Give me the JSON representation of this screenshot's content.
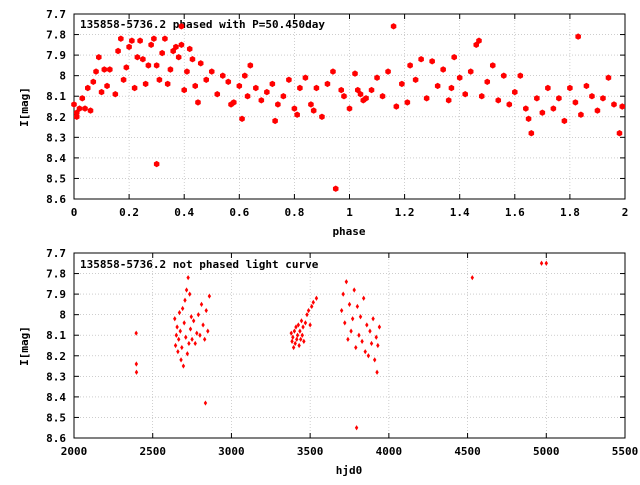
{
  "chart_data": [
    {
      "type": "scatter",
      "title": "135858-5736.2 phased with P=50.450day",
      "xlabel": "phase",
      "ylabel": "I[mag]",
      "xlim": [
        0,
        2
      ],
      "ylim": [
        8.6,
        7.7
      ],
      "y_inverted": true,
      "grid": true,
      "marker_color": "#ff0000",
      "x_ticks": [
        "0",
        "0.2",
        "0.4",
        "0.6",
        "0.8",
        "1",
        "1.2",
        "1.4",
        "1.6",
        "1.8",
        "2"
      ],
      "y_ticks": [
        "7.7",
        "7.8",
        "7.9",
        "8",
        "8.1",
        "8.2",
        "8.3",
        "8.4",
        "8.5",
        "8.6"
      ],
      "points": [
        [
          0.0,
          8.14
        ],
        [
          0.01,
          8.18
        ],
        [
          0.01,
          8.2
        ],
        [
          0.02,
          8.16
        ],
        [
          0.03,
          8.11
        ],
        [
          0.04,
          8.16
        ],
        [
          0.05,
          8.06
        ],
        [
          0.06,
          8.17
        ],
        [
          0.07,
          8.03
        ],
        [
          0.08,
          7.98
        ],
        [
          0.09,
          7.91
        ],
        [
          0.1,
          8.08
        ],
        [
          0.11,
          7.97
        ],
        [
          0.12,
          8.05
        ],
        [
          0.13,
          7.97
        ],
        [
          0.15,
          8.09
        ],
        [
          0.16,
          7.88
        ],
        [
          0.17,
          7.82
        ],
        [
          0.18,
          8.02
        ],
        [
          0.19,
          7.96
        ],
        [
          0.2,
          7.86
        ],
        [
          0.21,
          7.83
        ],
        [
          0.22,
          8.06
        ],
        [
          0.23,
          7.91
        ],
        [
          0.24,
          7.83
        ],
        [
          0.25,
          7.92
        ],
        [
          0.26,
          8.04
        ],
        [
          0.27,
          7.95
        ],
        [
          0.28,
          7.85
        ],
        [
          0.29,
          7.82
        ],
        [
          0.3,
          7.95
        ],
        [
          0.31,
          8.02
        ],
        [
          0.32,
          7.89
        ],
        [
          0.33,
          7.82
        ],
        [
          0.34,
          8.04
        ],
        [
          0.35,
          7.97
        ],
        [
          0.36,
          7.88
        ],
        [
          0.37,
          7.86
        ],
        [
          0.38,
          7.91
        ],
        [
          0.39,
          7.85
        ],
        [
          0.4,
          8.07
        ],
        [
          0.41,
          7.98
        ],
        [
          0.42,
          7.87
        ],
        [
          0.43,
          7.92
        ],
        [
          0.44,
          8.05
        ],
        [
          0.45,
          8.13
        ],
        [
          0.46,
          7.94
        ],
        [
          0.48,
          8.02
        ],
        [
          0.5,
          7.98
        ],
        [
          0.52,
          8.09
        ],
        [
          0.54,
          8.0
        ],
        [
          0.56,
          8.03
        ],
        [
          0.58,
          8.13
        ],
        [
          0.6,
          8.05
        ],
        [
          0.61,
          8.21
        ],
        [
          0.62,
          8.0
        ],
        [
          0.63,
          8.1
        ],
        [
          0.64,
          7.95
        ],
        [
          0.66,
          8.06
        ],
        [
          0.68,
          8.12
        ],
        [
          0.7,
          8.08
        ],
        [
          0.72,
          8.04
        ],
        [
          0.73,
          8.22
        ],
        [
          0.74,
          8.14
        ],
        [
          0.76,
          8.1
        ],
        [
          0.78,
          8.02
        ],
        [
          0.8,
          8.16
        ],
        [
          0.81,
          8.19
        ],
        [
          0.82,
          8.06
        ],
        [
          0.84,
          8.01
        ],
        [
          0.86,
          8.14
        ],
        [
          0.87,
          8.17
        ],
        [
          0.88,
          8.06
        ],
        [
          0.9,
          8.2
        ],
        [
          0.92,
          8.04
        ],
        [
          0.94,
          7.98
        ],
        [
          0.95,
          8.55
        ],
        [
          0.97,
          8.07
        ],
        [
          0.98,
          8.1
        ],
        [
          1.0,
          8.16
        ],
        [
          1.02,
          7.99
        ],
        [
          1.03,
          8.07
        ],
        [
          1.04,
          8.09
        ],
        [
          1.06,
          8.11
        ],
        [
          1.08,
          8.07
        ],
        [
          1.1,
          8.01
        ],
        [
          1.12,
          8.1
        ],
        [
          1.14,
          7.98
        ],
        [
          1.16,
          7.76
        ],
        [
          1.17,
          8.15
        ],
        [
          1.19,
          8.04
        ],
        [
          1.21,
          8.13
        ],
        [
          1.22,
          7.95
        ],
        [
          1.24,
          8.02
        ],
        [
          1.26,
          7.92
        ],
        [
          1.28,
          8.11
        ],
        [
          1.3,
          7.93
        ],
        [
          1.32,
          8.05
        ],
        [
          1.34,
          7.97
        ],
        [
          1.36,
          8.12
        ],
        [
          1.38,
          7.91
        ],
        [
          1.4,
          8.01
        ],
        [
          1.42,
          8.09
        ],
        [
          1.44,
          7.98
        ],
        [
          1.46,
          7.85
        ],
        [
          1.47,
          7.83
        ],
        [
          1.48,
          8.1
        ],
        [
          1.5,
          8.03
        ],
        [
          1.52,
          7.95
        ],
        [
          1.54,
          8.12
        ],
        [
          1.56,
          8.0
        ],
        [
          1.58,
          8.14
        ],
        [
          1.6,
          8.08
        ],
        [
          1.62,
          8.0
        ],
        [
          1.64,
          8.16
        ],
        [
          1.65,
          8.21
        ],
        [
          1.66,
          8.28
        ],
        [
          1.68,
          8.11
        ],
        [
          1.7,
          8.18
        ],
        [
          1.72,
          8.06
        ],
        [
          1.74,
          8.16
        ],
        [
          1.76,
          8.11
        ],
        [
          1.78,
          8.22
        ],
        [
          1.8,
          8.06
        ],
        [
          1.82,
          8.13
        ],
        [
          1.83,
          7.81
        ],
        [
          1.84,
          8.19
        ],
        [
          1.86,
          8.05
        ],
        [
          1.88,
          8.1
        ],
        [
          1.9,
          8.17
        ],
        [
          1.92,
          8.11
        ],
        [
          1.94,
          8.01
        ],
        [
          1.96,
          8.14
        ],
        [
          1.98,
          8.28
        ],
        [
          1.99,
          8.15
        ],
        [
          0.3,
          8.43
        ],
        [
          0.39,
          7.76
        ],
        [
          1.05,
          8.12
        ],
        [
          1.37,
          8.06
        ],
        [
          0.57,
          8.14
        ]
      ]
    },
    {
      "type": "scatter",
      "title": "135858-5736.2 not phased light curve",
      "xlabel": "hjd0",
      "ylabel": "I[mag]",
      "xlim": [
        2000,
        5500
      ],
      "ylim": [
        8.6,
        7.7
      ],
      "y_inverted": true,
      "grid": true,
      "marker_color": "#ff0000",
      "x_ticks": [
        "2000",
        "2500",
        "3000",
        "3500",
        "4000",
        "4500",
        "5000",
        "5500"
      ],
      "y_ticks": [
        "7.7",
        "7.8",
        "7.9",
        "8",
        "8.1",
        "8.2",
        "8.3",
        "8.4",
        "8.5",
        "8.6"
      ],
      "points": [
        [
          2395,
          8.09
        ],
        [
          2396,
          8.24
        ],
        [
          2397,
          8.28
        ],
        [
          2640,
          8.02
        ],
        [
          2645,
          8.15
        ],
        [
          2650,
          8.1
        ],
        [
          2655,
          8.06
        ],
        [
          2660,
          8.18
        ],
        [
          2665,
          8.12
        ],
        [
          2670,
          7.99
        ],
        [
          2675,
          8.08
        ],
        [
          2680,
          8.22
        ],
        [
          2685,
          8.16
        ],
        [
          2690,
          7.97
        ],
        [
          2695,
          8.25
        ],
        [
          2700,
          8.04
        ],
        [
          2705,
          7.93
        ],
        [
          2710,
          8.11
        ],
        [
          2715,
          7.88
        ],
        [
          2720,
          8.19
        ],
        [
          2725,
          7.82
        ],
        [
          2730,
          8.14
        ],
        [
          2735,
          7.9
        ],
        [
          2740,
          8.07
        ],
        [
          2745,
          8.01
        ],
        [
          2750,
          8.12
        ],
        [
          2760,
          8.03
        ],
        [
          2770,
          8.14
        ],
        [
          2780,
          8.09
        ],
        [
          2790,
          8.0
        ],
        [
          2800,
          8.1
        ],
        [
          2810,
          7.95
        ],
        [
          2820,
          8.05
        ],
        [
          2830,
          8.12
        ],
        [
          2840,
          7.98
        ],
        [
          2850,
          8.08
        ],
        [
          2860,
          7.91
        ],
        [
          2835,
          8.43
        ],
        [
          3380,
          8.09
        ],
        [
          3385,
          8.13
        ],
        [
          3390,
          8.11
        ],
        [
          3395,
          8.16
        ],
        [
          3400,
          8.08
        ],
        [
          3405,
          8.14
        ],
        [
          3410,
          8.06
        ],
        [
          3415,
          8.12
        ],
        [
          3420,
          8.1
        ],
        [
          3425,
          8.05
        ],
        [
          3430,
          8.15
        ],
        [
          3435,
          8.08
        ],
        [
          3440,
          8.12
        ],
        [
          3445,
          8.03
        ],
        [
          3450,
          8.1
        ],
        [
          3455,
          8.06
        ],
        [
          3460,
          8.13
        ],
        [
          3470,
          8.04
        ],
        [
          3480,
          8.0
        ],
        [
          3490,
          7.98
        ],
        [
          3500,
          8.05
        ],
        [
          3510,
          7.96
        ],
        [
          3520,
          7.94
        ],
        [
          3540,
          7.92
        ],
        [
          3700,
          7.98
        ],
        [
          3710,
          7.9
        ],
        [
          3720,
          8.04
        ],
        [
          3730,
          7.84
        ],
        [
          3740,
          8.12
        ],
        [
          3750,
          7.95
        ],
        [
          3760,
          8.08
        ],
        [
          3770,
          8.02
        ],
        [
          3780,
          7.88
        ],
        [
          3790,
          8.16
        ],
        [
          3795,
          8.55
        ],
        [
          3800,
          7.96
        ],
        [
          3810,
          8.1
        ],
        [
          3820,
          8.01
        ],
        [
          3830,
          8.13
        ],
        [
          3840,
          7.92
        ],
        [
          3850,
          8.18
        ],
        [
          3860,
          8.05
        ],
        [
          3870,
          8.2
        ],
        [
          3880,
          8.08
        ],
        [
          3890,
          8.14
        ],
        [
          3900,
          8.02
        ],
        [
          3910,
          8.22
        ],
        [
          3920,
          8.11
        ],
        [
          3925,
          8.28
        ],
        [
          3930,
          8.15
        ],
        [
          3940,
          8.06
        ],
        [
          4530,
          7.82
        ],
        [
          4970,
          7.75
        ],
        [
          5000,
          7.75
        ]
      ]
    }
  ]
}
